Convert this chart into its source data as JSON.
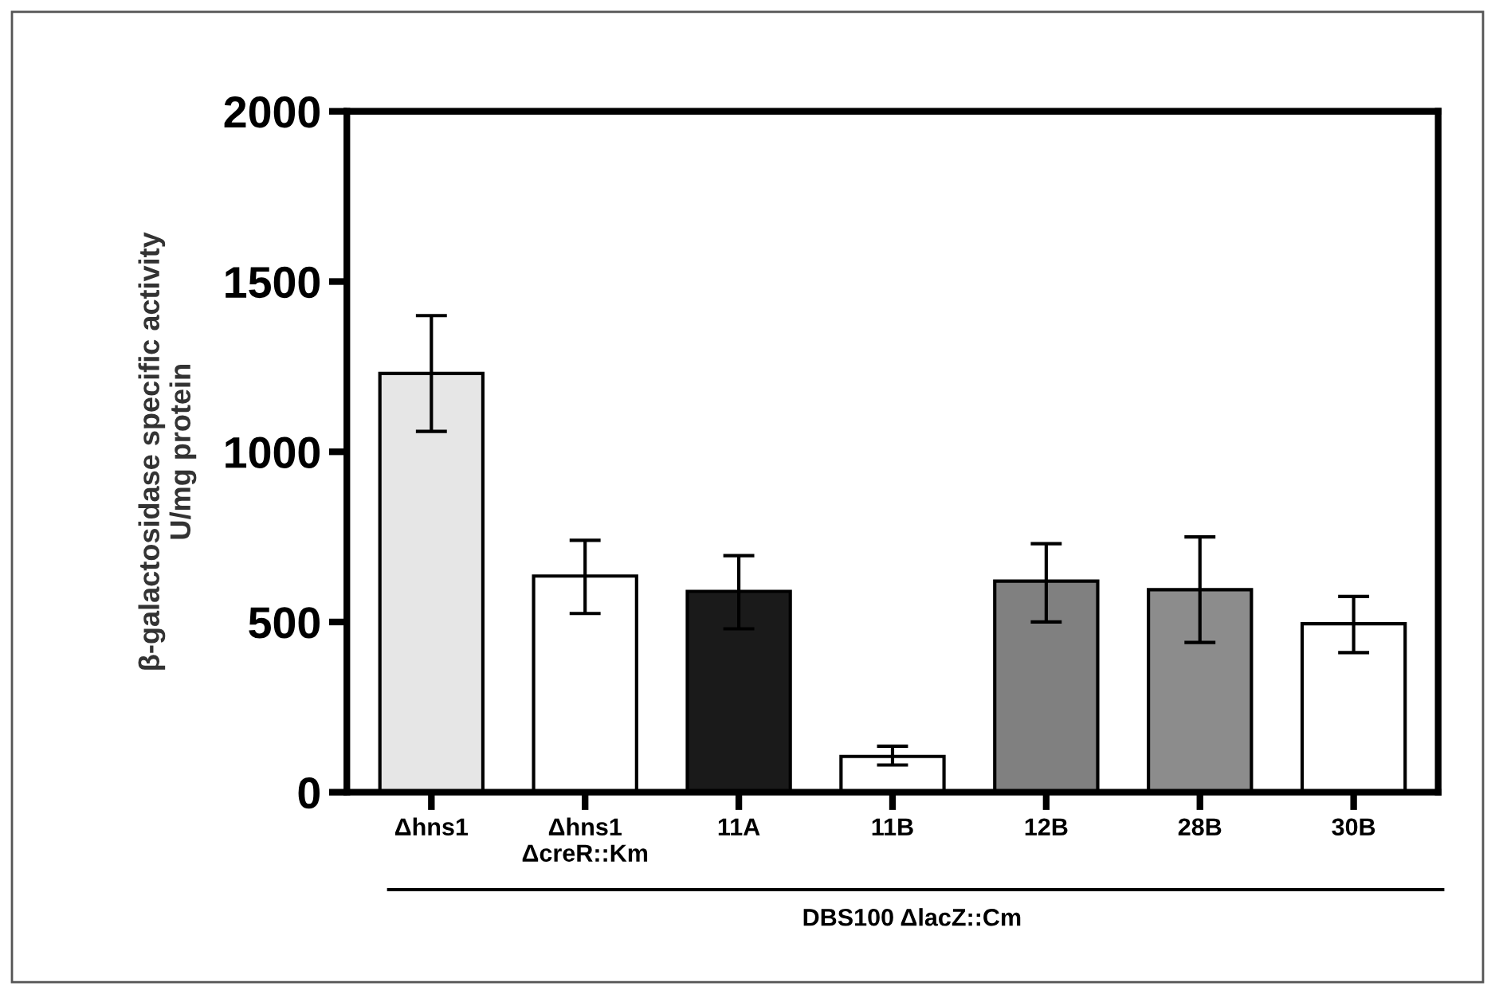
{
  "chart_data": {
    "type": "bar",
    "ylabel": "β-galactosidase specific activity\nU/mg protein",
    "categories": [
      "Δhns1",
      "Δhns1\nΔcreR::Km",
      "11A",
      "11B",
      "12B",
      "28B",
      "30B"
    ],
    "values": [
      1230,
      635,
      590,
      105,
      620,
      595,
      495
    ],
    "errors": [
      [
        1060,
        1400
      ],
      [
        525,
        740
      ],
      [
        480,
        695
      ],
      [
        80,
        135
      ],
      [
        500,
        730
      ],
      [
        440,
        750
      ],
      [
        410,
        575
      ]
    ],
    "colors": [
      "#e6e6e6",
      "#ffffff",
      "#1a1a1a",
      "#ffffff",
      "#808080",
      "#8c8c8c",
      "#ffffff"
    ],
    "ylim": [
      0,
      2000
    ],
    "yticks": [
      0,
      500,
      1000,
      1500,
      2000
    ],
    "grid": false,
    "legend": false,
    "annotations": [
      "DBS100 ΔlacZ::Cm"
    ]
  }
}
